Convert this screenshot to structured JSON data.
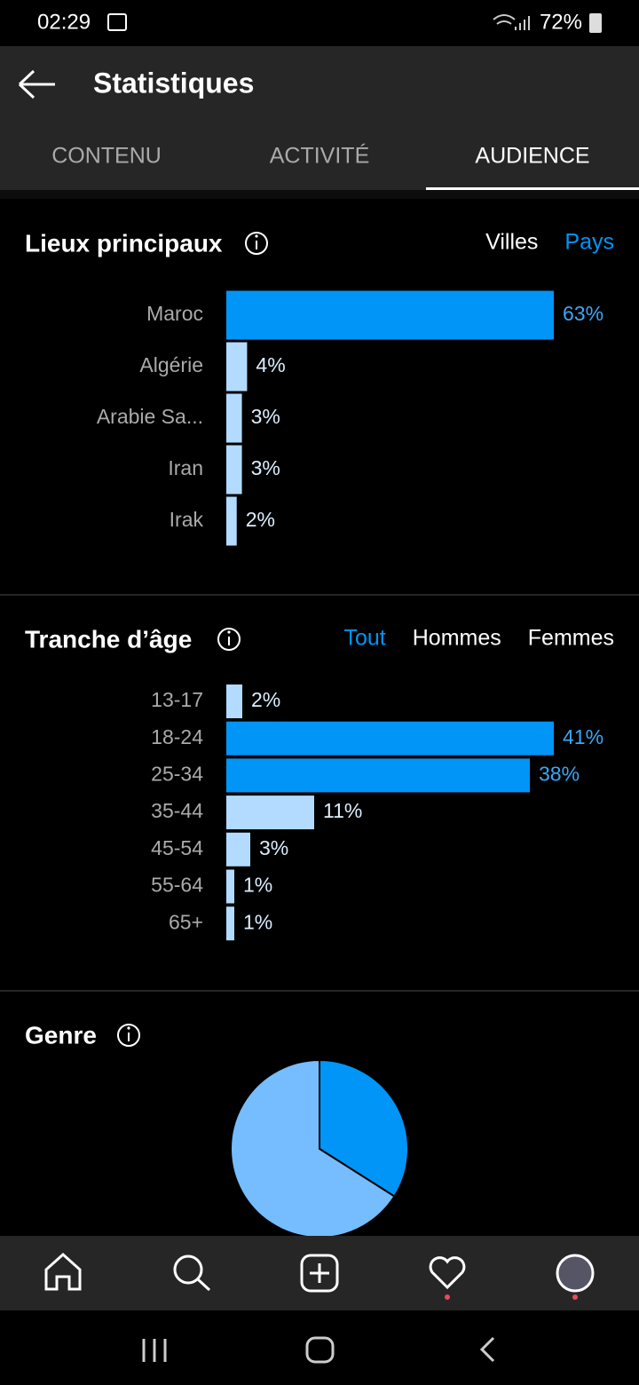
{
  "status_bar": {
    "time": "02:29",
    "battery": "72%"
  },
  "header": {
    "title": "Statistiques"
  },
  "tabs": {
    "items": [
      "CONTENU",
      "ACTIVITÉ",
      "AUDIENCE"
    ],
    "selected": "AUDIENCE"
  },
  "locations": {
    "title": "Lieux principaux",
    "filters": [
      "Villes",
      "Pays"
    ],
    "selected_filter": "Pays",
    "chart_data": {
      "type": "hbar",
      "categories": [
        "Maroc",
        "Algérie",
        "Arabie Sa...",
        "Iran",
        "Irak"
      ],
      "values": [
        63,
        4,
        3,
        3,
        2
      ],
      "value_labels": [
        "63%",
        "4%",
        "3%",
        "3%",
        "2%"
      ],
      "colors": [
        "#0095f6",
        "#b3dbff",
        "#b3dbff",
        "#b3dbff",
        "#b3dbff"
      ]
    }
  },
  "age": {
    "title": "Tranche d’âge",
    "filters": [
      "Tout",
      "Hommes",
      "Femmes"
    ],
    "selected_filter": "Tout",
    "chart_data": {
      "type": "hbar",
      "categories": [
        "13-17",
        "18-24",
        "25-34",
        "35-44",
        "45-54",
        "55-64",
        "65+"
      ],
      "values": [
        2,
        41,
        38,
        11,
        3,
        1,
        1
      ],
      "value_labels": [
        "2%",
        "41%",
        "38%",
        "11%",
        "3%",
        "1%",
        "1%"
      ],
      "colors": [
        "#b3dbff",
        "#0095f6",
        "#0095f6",
        "#b3dbff",
        "#b3dbff",
        "#b3dbff",
        "#b3dbff"
      ]
    }
  },
  "gender": {
    "title": "Genre",
    "chart_data": {
      "type": "pie",
      "values": [
        34,
        66
      ],
      "colors": [
        "#0095f6",
        "#75bdff"
      ]
    }
  }
}
